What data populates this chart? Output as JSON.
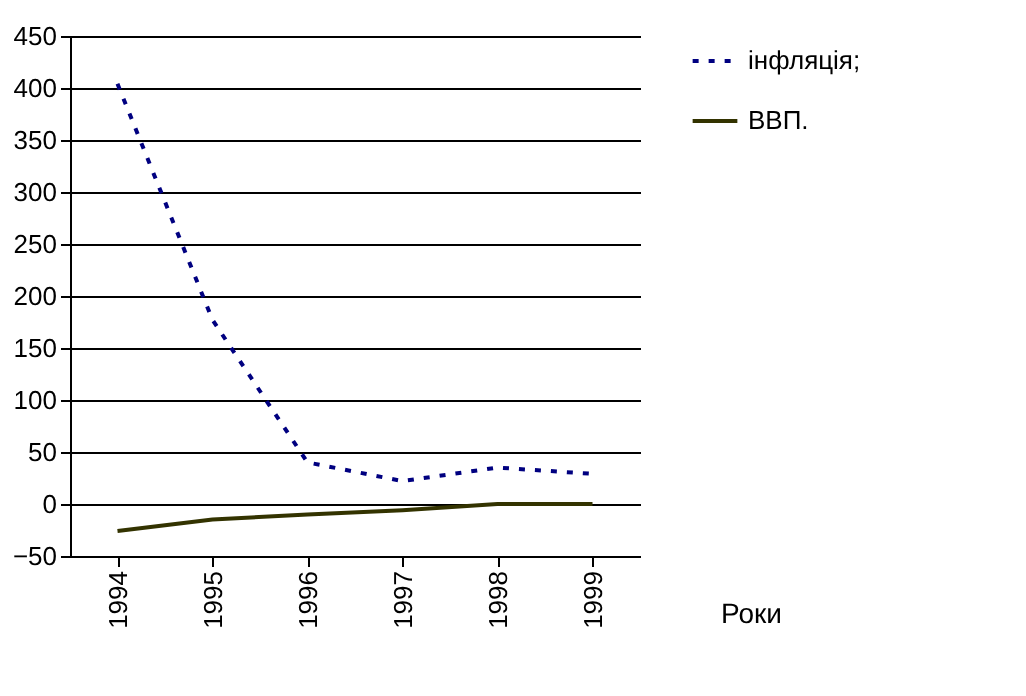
{
  "chart_data": {
    "type": "line",
    "xlabel": "Роки",
    "categories": [
      "1994",
      "1995",
      "1996",
      "1997",
      "1998",
      "1999"
    ],
    "series": [
      {
        "name": "інфляція;",
        "color": "#000080",
        "line_style": "dashed",
        "values": [
          404,
          177,
          40,
          22,
          35,
          29
        ]
      },
      {
        "name": "ВВП.",
        "color": "#333300",
        "line_style": "solid",
        "values": [
          -26,
          -15,
          -10,
          -6,
          0,
          0
        ]
      }
    ],
    "ylim": [
      -50,
      450
    ],
    "yticks": [
      -50,
      0,
      50,
      100,
      150,
      200,
      250,
      300,
      350,
      400,
      450
    ],
    "grid": "y",
    "legend": "right",
    "marker": "none"
  }
}
